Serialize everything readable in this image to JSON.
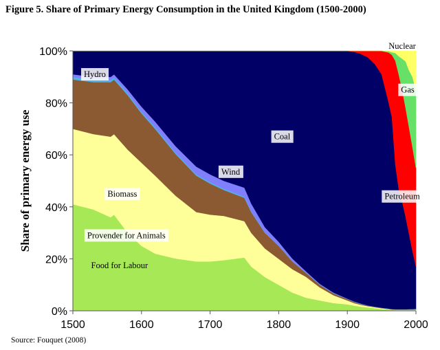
{
  "title": "Figure 5. Share of Primary Energy Consumption in the United Kingdom (1500-2000)",
  "source": "Source: Fouquet (2008)",
  "chart_data": {
    "type": "area",
    "stacked": true,
    "normalized": true,
    "ylabel": "Share of primary energy use",
    "xlim": [
      1500,
      2000
    ],
    "ylim": [
      0,
      100
    ],
    "x_ticks": [
      "1500",
      "1600",
      "1700",
      "1800",
      "1900",
      "2000"
    ],
    "y_ticks": [
      "0%",
      "20%",
      "40%",
      "60%",
      "80%",
      "100%"
    ],
    "grid": false,
    "x": [
      1500,
      1530,
      1555,
      1560,
      1580,
      1600,
      1620,
      1650,
      1680,
      1700,
      1720,
      1750,
      1760,
      1780,
      1800,
      1820,
      1840,
      1860,
      1880,
      1900,
      1910,
      1920,
      1930,
      1940,
      1950,
      1960,
      1965,
      1970,
      1975,
      1980,
      1985,
      1990,
      1995,
      2000
    ],
    "series": [
      {
        "name": "Food for Labour",
        "color": "#a6e856",
        "values": [
          41,
          39,
          36,
          37,
          30,
          25,
          22,
          20,
          19,
          19,
          19.5,
          20.5,
          17,
          13,
          10,
          7,
          5,
          4,
          3,
          2.5,
          2,
          1.6,
          1.3,
          1,
          0.7,
          0.5,
          0.4,
          0.3,
          0.3,
          0.3,
          0.3,
          0.3,
          0.3,
          0.3
        ]
      },
      {
        "name": "Provender for Animals",
        "color": "#ffff99",
        "values": [
          29,
          29,
          31,
          31,
          32,
          32,
          30,
          24,
          19,
          18,
          17,
          14,
          13,
          11,
          10,
          9,
          8,
          5,
          3,
          1.5,
          1,
          0.7,
          0.5,
          0.4,
          0.3,
          0.2,
          0.1,
          0.1,
          0.1,
          0.1,
          0.1,
          0.1,
          0.1,
          0.1
        ]
      },
      {
        "name": "Biomass",
        "color": "#8b5a32",
        "values": [
          19,
          20,
          21,
          21,
          21,
          19,
          18,
          16,
          14,
          12,
          10,
          9,
          8,
          6,
          5,
          3,
          1.5,
          1,
          0.7,
          0.5,
          0.4,
          0.3,
          0.2,
          0.1,
          0.1,
          0.1,
          0.1,
          0.1,
          0.1,
          0.1,
          0.1,
          0.1,
          0.1,
          0.1
        ]
      },
      {
        "name": "Hydro",
        "color": "#4fb3e8",
        "values": [
          1,
          1,
          0.8,
          0.8,
          0.7,
          0.6,
          0.6,
          0.5,
          0.5,
          0.5,
          0.5,
          0.4,
          0.3,
          0.2,
          0.1,
          0.1,
          0.1,
          0.1,
          0.1,
          0.1,
          0.1,
          0.1,
          0.1,
          0.1,
          0.1,
          0.1,
          0.1,
          0.1,
          0.1,
          0.1,
          0.1,
          0.2,
          0.2,
          0.2
        ]
      },
      {
        "name": "Wind",
        "color": "#8080ff",
        "values": [
          1,
          1,
          1.2,
          1.2,
          1.5,
          2,
          2.2,
          2.5,
          3,
          3,
          3,
          3.5,
          3,
          2,
          1.5,
          1,
          0.5,
          0.3,
          0.2,
          0.1,
          0.1,
          0.1,
          0,
          0,
          0,
          0,
          0,
          0,
          0,
          0,
          0,
          0,
          0,
          0.1
        ]
      },
      {
        "name": "Coal",
        "color": "#000066",
        "values": [
          9,
          10,
          10,
          9,
          14.8,
          21.4,
          27.2,
          36.5,
          44.5,
          47.5,
          50,
          52.6,
          58.7,
          67.8,
          73.4,
          79.9,
          84.4,
          89.6,
          93,
          95.3,
          96,
          96,
          95.4,
          93.5,
          89.8,
          79.6,
          73.9,
          55.6,
          46.3,
          41.5,
          35.6,
          29,
          22.3,
          16.3
        ]
      },
      {
        "name": "Petroleum",
        "color": "#ff0000",
        "values": [
          0,
          0,
          0,
          0,
          0,
          0,
          0,
          0,
          0,
          0,
          0,
          0,
          0,
          0,
          0,
          0,
          0,
          0,
          0,
          0,
          0.4,
          1.2,
          2.5,
          5,
          9,
          19,
          24,
          40,
          44,
          43,
          42,
          41,
          40,
          38
        ]
      },
      {
        "name": "Gas",
        "color": "#66e066",
        "values": [
          0,
          0,
          0,
          0,
          0,
          0,
          0,
          0,
          0,
          0,
          0,
          0,
          0,
          0,
          0,
          0,
          0,
          0,
          0,
          0,
          0,
          0,
          0,
          0,
          0,
          0.5,
          1,
          3,
          7,
          12,
          18,
          22,
          27,
          30
        ]
      },
      {
        "name": "Nuclear",
        "color": "#ffff66",
        "values": [
          0,
          0,
          0,
          0,
          0,
          0,
          0,
          0,
          0,
          0,
          0,
          0,
          0,
          0,
          0,
          0,
          0,
          0,
          0,
          0,
          0,
          0,
          0,
          0,
          0,
          0.1,
          0.5,
          0.8,
          2,
          3,
          4,
          7.5,
          10,
          15
        ]
      }
    ],
    "label_positions": {
      "Hydro": [
        1532,
        91
      ],
      "Wind": [
        1730,
        53.5
      ],
      "Coal": [
        1805,
        67
      ],
      "Biomass": [
        1572,
        45
      ],
      "Provender for Animals": [
        1578,
        29
      ],
      "Food for Labour": [
        1568,
        17.5
      ],
      "Petroleum": [
        1980,
        44
      ],
      "Gas": [
        1988,
        85
      ],
      "Nuclear": [
        1980,
        101.8
      ]
    }
  }
}
